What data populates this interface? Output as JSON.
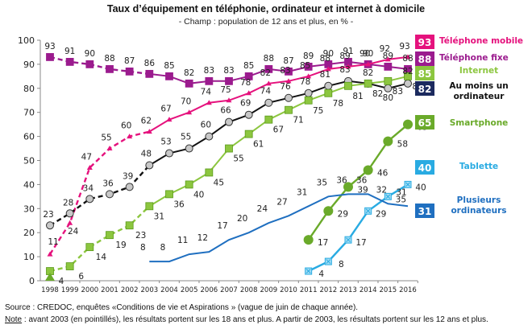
{
  "chart_data": {
    "type": "line",
    "title": "Taux d’équipement en téléphonie, ordinateur et internet à domicile",
    "subtitle": "- Champ : population de 12 ans et plus, en % -",
    "xlabel": "",
    "ylabel": "",
    "ylim": [
      0,
      100
    ],
    "yticks": [
      0,
      10,
      20,
      30,
      40,
      50,
      60,
      70,
      80,
      90,
      100
    ],
    "x": [
      1998,
      1999,
      2000,
      2001,
      2002,
      2003,
      2004,
      2005,
      2006,
      2007,
      2008,
      2009,
      2010,
      2011,
      2012,
      2013,
      2014,
      2015,
      2016
    ],
    "dashed_before": 2003,
    "grid": false,
    "legend_placement": "right",
    "series": [
      {
        "key": "fixe",
        "name": "Téléphone fixe",
        "color": "#9b1b8e",
        "marker": "square",
        "final": 88,
        "values": [
          93,
          91,
          90,
          88,
          87,
          86,
          85,
          82,
          83,
          83,
          85,
          88,
          87,
          89,
          90,
          91,
          90,
          89,
          88
        ]
      },
      {
        "key": "mobile",
        "name": "Téléphone mobile",
        "color": "#e5127d",
        "marker": "triangle",
        "final": 93,
        "values": [
          11,
          24,
          47,
          55,
          60,
          62,
          67,
          70,
          74,
          75,
          78,
          82,
          83,
          85,
          88,
          89,
          90,
          92,
          93
        ]
      },
      {
        "key": "ordinateur",
        "name": "Au moins un ordinateur",
        "color": "#111111",
        "marker": "circle",
        "final": 82,
        "values": [
          23,
          28,
          34,
          36,
          39,
          48,
          53,
          55,
          60,
          66,
          69,
          74,
          76,
          78,
          81,
          83,
          82,
          80,
          82
        ]
      },
      {
        "key": "internet",
        "name": "Internet",
        "color": "#8cc63f",
        "marker": "square",
        "final": 85,
        "values": [
          4,
          6,
          14,
          19,
          23,
          31,
          36,
          40,
          45,
          55,
          61,
          67,
          71,
          75,
          78,
          81,
          82,
          83,
          85
        ]
      },
      {
        "key": "smartphone",
        "name": "Smartphone",
        "color": "#6aaa2a",
        "marker": "bigcircle",
        "final": 65,
        "values": [
          null,
          null,
          null,
          null,
          null,
          null,
          null,
          null,
          null,
          null,
          null,
          null,
          null,
          17,
          29,
          39,
          46,
          58,
          65
        ]
      },
      {
        "key": "tablette",
        "name": "Tablette",
        "color": "#29abe2",
        "marker": "xsquare",
        "final": 40,
        "values": [
          null,
          null,
          null,
          null,
          null,
          null,
          null,
          null,
          null,
          null,
          null,
          null,
          null,
          4,
          8,
          17,
          29,
          35,
          40
        ]
      },
      {
        "key": "plusieurs",
        "name": "Plusieurs ordinateurs",
        "color": "#1f6fc0",
        "marker": "none",
        "final": 31,
        "values": [
          null,
          null,
          null,
          null,
          null,
          8,
          8,
          11,
          12,
          17,
          20,
          24,
          27,
          31,
          35,
          36,
          36,
          32,
          31
        ]
      }
    ],
    "legend": [
      {
        "key": "mobile",
        "badge": "93",
        "badge_color": "#e5127d",
        "label_lines": [
          "Téléphone mobile"
        ],
        "label_color": "#e5127d"
      },
      {
        "key": "fixe",
        "badge": "88",
        "badge_color": "#9b1b8e",
        "label_lines": [
          "Téléphone fixe"
        ],
        "label_color": "#9b1b8e"
      },
      {
        "key": "internet",
        "badge": "85",
        "badge_color": "#8cc63f",
        "label_lines": [
          "Internet"
        ],
        "label_color": "#8cc63f"
      },
      {
        "key": "ordinateur",
        "badge": "82",
        "badge_color": "#1b2a5e",
        "label_lines": [
          "Au moins un",
          "ordinateur"
        ],
        "label_color": "#111111"
      },
      {
        "key": "smartphone",
        "badge": "65",
        "badge_color": "#6aaa2a",
        "label_lines": [
          "Smartphone"
        ],
        "label_color": "#6aaa2a"
      },
      {
        "key": "tablette",
        "badge": "40",
        "badge_color": "#29abe2",
        "label_lines": [
          "Tablette"
        ],
        "label_color": "#29abe2"
      },
      {
        "key": "plusieurs",
        "badge": "31",
        "badge_color": "#1f6fc0",
        "label_lines": [
          "Plusieurs",
          "ordinateurs"
        ],
        "label_color": "#1f6fc0"
      }
    ]
  },
  "footer": {
    "source": "Source : CREDOC, enquêtes «Conditions de vie et Aspirations » (vague de juin de chaque année).",
    "note_label": "Note",
    "note_text": " : avant 2003 (en pointillés), les résultats portent sur les 18 ans et plus. A partir de 2003, les résultats portent sur les 12 ans et plus."
  }
}
